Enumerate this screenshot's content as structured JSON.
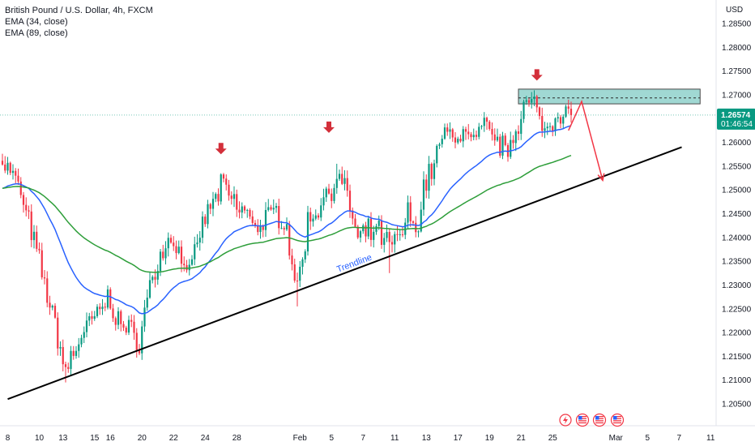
{
  "legend": {
    "title": "British Pound / U.S. Dollar, 4h, FXCM",
    "ema1": "EMA (34, close)",
    "ema2": "EMA (89, close)"
  },
  "price_scale": {
    "currency": "USD",
    "last_price": "1.26574",
    "countdown": "01:46:54"
  },
  "annotations": {
    "trendline_label": "Trendline"
  },
  "colors": {
    "up_candle": "#089981",
    "down_candle": "#f23645",
    "ema34": "#2962ff",
    "ema89": "#2e9e3a",
    "trendline": "#000000",
    "zone_fill": "#80cbc4",
    "arrow_marker": "#d32f3a",
    "projection": "#f23645",
    "last_price_tag": "#089981"
  },
  "chart_data": {
    "type": "candlestick",
    "symbol": "GBPUSD",
    "interval": "4h",
    "ylim": [
      1.2027,
      1.2904
    ],
    "y_ticks": [
      "1.28500",
      "1.28000",
      "1.27500",
      "1.27000",
      "1.26500",
      "1.26000",
      "1.25500",
      "1.25000",
      "1.24500",
      "1.24000",
      "1.23500",
      "1.23000",
      "1.22500",
      "1.22000",
      "1.21500",
      "1.21000",
      "1.20500"
    ],
    "x_ticks": [
      {
        "label": "8",
        "index": 2
      },
      {
        "label": "10",
        "index": 14
      },
      {
        "label": "13",
        "index": 23
      },
      {
        "label": "15",
        "index": 35
      },
      {
        "label": "16",
        "index": 41
      },
      {
        "label": "20",
        "index": 53
      },
      {
        "label": "22",
        "index": 65
      },
      {
        "label": "24",
        "index": 77
      },
      {
        "label": "28",
        "index": 89
      },
      {
        "label": "Feb",
        "index": 113
      },
      {
        "label": "5",
        "index": 125
      },
      {
        "label": "7",
        "index": 137
      },
      {
        "label": "11",
        "index": 149
      },
      {
        "label": "13",
        "index": 161
      },
      {
        "label": "17",
        "index": 173
      },
      {
        "label": "19",
        "index": 185
      },
      {
        "label": "21",
        "index": 197
      },
      {
        "label": "25",
        "index": 209
      },
      {
        "label": "Mar",
        "index": 233
      },
      {
        "label": "5",
        "index": 245
      },
      {
        "label": "7",
        "index": 257
      },
      {
        "label": "11",
        "index": 269
      }
    ],
    "candle_count": 217,
    "anchors": [
      [
        0,
        1.2565
      ],
      [
        6,
        1.251
      ],
      [
        12,
        1.239
      ],
      [
        18,
        1.226
      ],
      [
        24,
        1.212
      ],
      [
        30,
        1.2195
      ],
      [
        35,
        1.223
      ],
      [
        40,
        1.227
      ],
      [
        46,
        1.221
      ],
      [
        52,
        1.2185
      ],
      [
        56,
        1.23
      ],
      [
        60,
        1.2355
      ],
      [
        64,
        1.2405
      ],
      [
        68,
        1.2355
      ],
      [
        72,
        1.233
      ],
      [
        76,
        1.243
      ],
      [
        80,
        1.2475
      ],
      [
        84,
        1.251
      ],
      [
        88,
        1.247
      ],
      [
        93,
        1.245
      ],
      [
        98,
        1.242
      ],
      [
        102,
        1.245
      ],
      [
        107,
        1.2445
      ],
      [
        112,
        1.229
      ],
      [
        116,
        1.243
      ],
      [
        120,
        1.2465
      ],
      [
        124,
        1.25
      ],
      [
        127,
        1.2525
      ],
      [
        131,
        1.249
      ],
      [
        135,
        1.239
      ],
      [
        139,
        1.241
      ],
      [
        143,
        1.241
      ],
      [
        147,
        1.238
      ],
      [
        151,
        1.24
      ],
      [
        154,
        1.245
      ],
      [
        157,
        1.241
      ],
      [
        160,
        1.2505
      ],
      [
        163,
        1.2545
      ],
      [
        167,
        1.261
      ],
      [
        171,
        1.2615
      ],
      [
        175,
        1.262
      ],
      [
        179,
        1.26
      ],
      [
        183,
        1.263
      ],
      [
        187,
        1.261
      ],
      [
        191,
        1.258
      ],
      [
        195,
        1.263
      ],
      [
        198,
        1.268
      ],
      [
        202,
        1.2675
      ],
      [
        206,
        1.2625
      ],
      [
        210,
        1.266
      ],
      [
        214,
        1.267
      ],
      [
        216,
        1.2657
      ]
    ],
    "series": [
      {
        "name": "EMA (34, close)",
        "period": 34
      },
      {
        "name": "EMA (89, close)",
        "period": 89
      }
    ],
    "trendline": {
      "from": {
        "index": 2,
        "value": 1.206
      },
      "to": {
        "index": 258,
        "value": 1.259
      }
    },
    "resistance_zone": {
      "from_index": 196,
      "to_index": 265,
      "low": 1.2681,
      "high": 1.2712,
      "mid": 1.26935
    },
    "down_markers": [
      {
        "index": 83,
        "value": 1.2575
      },
      {
        "index": 124,
        "value": 1.262
      },
      {
        "index": 203,
        "value": 1.273
      }
    ],
    "projection_path": [
      {
        "index": 215,
        "value": 1.2625
      },
      {
        "index": 220,
        "value": 1.2686
      },
      {
        "index": 228,
        "value": 1.252
      }
    ],
    "last_price_line": 1.26574
  }
}
